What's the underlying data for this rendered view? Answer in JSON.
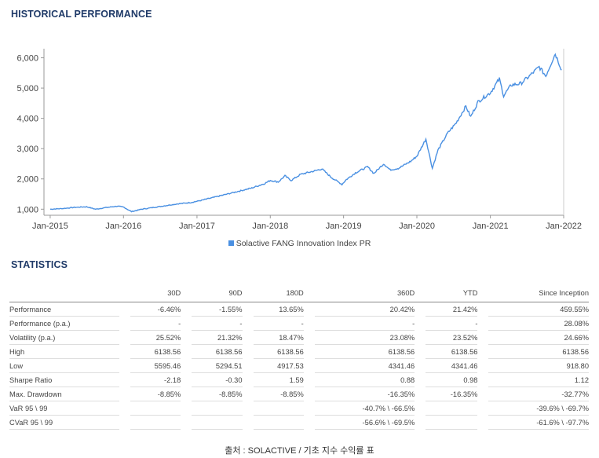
{
  "header": {
    "title": "HISTORICAL PERFORMANCE"
  },
  "statistics": {
    "title": "STATISTICS",
    "columns": [
      "30D",
      "90D",
      "180D",
      "360D",
      "YTD",
      "Since Inception"
    ],
    "rows": [
      {
        "label": "Performance",
        "values": [
          "-6.46%",
          "-1.55%",
          "13.65%",
          "20.42%",
          "21.42%",
          "459.55%"
        ]
      },
      {
        "label": "Performance (p.a.)",
        "values": [
          "-",
          "-",
          "-",
          "-",
          "-",
          "28.08%"
        ]
      },
      {
        "label": "Volatility (p.a.)",
        "values": [
          "25.52%",
          "21.32%",
          "18.47%",
          "23.08%",
          "23.52%",
          "24.66%"
        ]
      },
      {
        "label": "High",
        "values": [
          "6138.56",
          "6138.56",
          "6138.56",
          "6138.56",
          "6138.56",
          "6138.56"
        ]
      },
      {
        "label": "Low",
        "values": [
          "5595.46",
          "5294.51",
          "4917.53",
          "4341.46",
          "4341.46",
          "918.80"
        ]
      },
      {
        "label": "Sharpe Ratio",
        "values": [
          "-2.18",
          "-0.30",
          "1.59",
          "0.88",
          "0.98",
          "1.12"
        ]
      },
      {
        "label": "Max. Drawdown",
        "values": [
          "-8.85%",
          "-8.85%",
          "-8.85%",
          "-16.35%",
          "-16.35%",
          "-32.77%"
        ]
      },
      {
        "label": "VaR 95 \\ 99",
        "values": [
          "",
          "",
          "",
          "-40.7% \\ -66.5%",
          "",
          "-39.6% \\ -69.7%"
        ]
      },
      {
        "label": "CVaR 95 \\ 99",
        "values": [
          "",
          "",
          "",
          "-56.6% \\ -69.5%",
          "",
          "-61.6% \\ -97.7%"
        ]
      }
    ]
  },
  "caption": "출처 : SOLACTIVE / 기초 지수 수익률 표",
  "chart_data": {
    "type": "line",
    "title": "",
    "xlabel": "",
    "ylabel": "",
    "xlim": [
      "2014-12-01",
      "2022-01-01"
    ],
    "ylim": [
      800,
      6300
    ],
    "y_ticks": [
      1000,
      2000,
      3000,
      4000,
      5000,
      6000
    ],
    "y_tick_labels": [
      "1,000",
      "2,000",
      "3,000",
      "4,000",
      "5,000",
      "6,000"
    ],
    "x_tick_labels": [
      "Jan-2015",
      "Jan-2016",
      "Jan-2017",
      "Jan-2018",
      "Jan-2019",
      "Jan-2020",
      "Jan-2021",
      "Jan-2022"
    ],
    "grid": false,
    "legend": "bottom",
    "series": [
      {
        "name": "Solactive FANG Innovation Index PR",
        "color": "#4a90e2",
        "points": [
          [
            "2015-01-01",
            1000
          ],
          [
            "2015-03-01",
            1020
          ],
          [
            "2015-05-01",
            1060
          ],
          [
            "2015-07-01",
            1080
          ],
          [
            "2015-08-15",
            1000
          ],
          [
            "2015-10-01",
            1050
          ],
          [
            "2015-12-01",
            1100
          ],
          [
            "2016-01-01",
            1070
          ],
          [
            "2016-02-10",
            920
          ],
          [
            "2016-04-01",
            1000
          ],
          [
            "2016-06-01",
            1060
          ],
          [
            "2016-08-01",
            1120
          ],
          [
            "2016-10-01",
            1180
          ],
          [
            "2016-12-01",
            1220
          ],
          [
            "2017-01-01",
            1260
          ],
          [
            "2017-04-01",
            1400
          ],
          [
            "2017-07-01",
            1550
          ],
          [
            "2017-10-01",
            1700
          ],
          [
            "2017-12-01",
            1840
          ],
          [
            "2018-01-01",
            1950
          ],
          [
            "2018-02-10",
            1900
          ],
          [
            "2018-03-15",
            2100
          ],
          [
            "2018-04-15",
            1950
          ],
          [
            "2018-06-01",
            2150
          ],
          [
            "2018-08-01",
            2250
          ],
          [
            "2018-09-15",
            2330
          ],
          [
            "2018-11-01",
            2050
          ],
          [
            "2018-12-24",
            1820
          ],
          [
            "2019-01-15",
            1980
          ],
          [
            "2019-03-01",
            2200
          ],
          [
            "2019-05-01",
            2400
          ],
          [
            "2019-06-01",
            2180
          ],
          [
            "2019-07-20",
            2500
          ],
          [
            "2019-08-20",
            2300
          ],
          [
            "2019-10-01",
            2350
          ],
          [
            "2019-12-01",
            2580
          ],
          [
            "2020-01-01",
            2750
          ],
          [
            "2020-02-15",
            3320
          ],
          [
            "2020-03-18",
            2350
          ],
          [
            "2020-04-15",
            2950
          ],
          [
            "2020-06-01",
            3500
          ],
          [
            "2020-07-15",
            3850
          ],
          [
            "2020-09-01",
            4400
          ],
          [
            "2020-09-25",
            4050
          ],
          [
            "2020-11-01",
            4550
          ],
          [
            "2021-01-01",
            4850
          ],
          [
            "2021-02-15",
            5300
          ],
          [
            "2021-03-08",
            4750
          ],
          [
            "2021-04-15",
            5100
          ],
          [
            "2021-06-01",
            5150
          ],
          [
            "2021-07-15",
            5400
          ],
          [
            "2021-09-01",
            5700
          ],
          [
            "2021-10-04",
            5400
          ],
          [
            "2021-11-20",
            6138
          ],
          [
            "2021-12-10",
            5800
          ],
          [
            "2021-12-22",
            5600
          ]
        ]
      }
    ]
  }
}
